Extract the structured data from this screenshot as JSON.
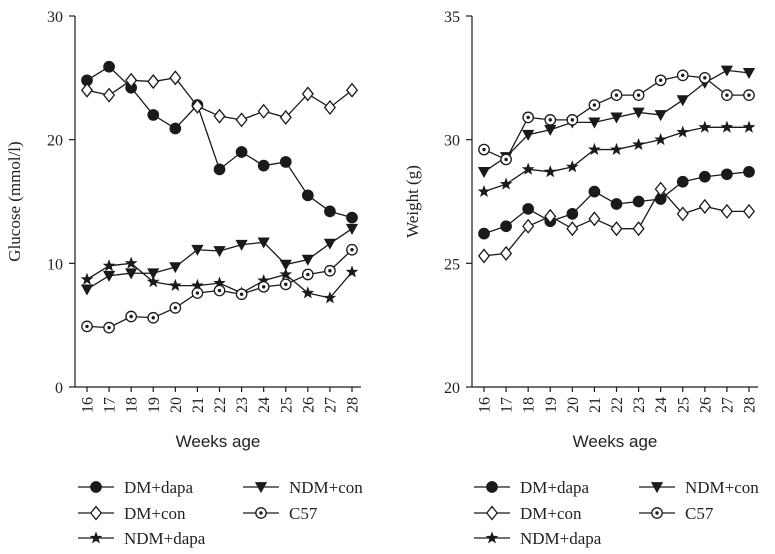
{
  "chart_data": [
    {
      "type": "line",
      "ylabel": "Glucose (mmol/l)",
      "xlabel": "Weeks age",
      "ylim": [
        0,
        30
      ],
      "yticks": [
        0,
        10,
        20,
        30
      ],
      "categories": [
        "16",
        "17",
        "18",
        "19",
        "20",
        "21",
        "22",
        "23",
        "24",
        "25",
        "26",
        "27",
        "28"
      ],
      "series": [
        {
          "name": "DM+dapa",
          "marker": "filled-circle",
          "values": [
            24.8,
            25.9,
            24.2,
            22.0,
            20.9,
            22.8,
            17.6,
            19.0,
            17.9,
            18.2,
            15.5,
            14.2,
            13.7
          ]
        },
        {
          "name": "DM+con",
          "marker": "open-diamond",
          "values": [
            24.0,
            23.6,
            24.8,
            24.7,
            25.0,
            22.7,
            21.9,
            21.6,
            22.3,
            21.8,
            23.7,
            22.6,
            24.0
          ]
        },
        {
          "name": "NDM+dapa",
          "marker": "star",
          "values": [
            8.7,
            9.8,
            10.0,
            8.5,
            8.2,
            8.2,
            8.4,
            7.6,
            8.6,
            9.1,
            7.6,
            7.2,
            9.3
          ]
        },
        {
          "name": "NDM+con",
          "marker": "filled-triangle-down",
          "values": [
            7.9,
            9.0,
            9.2,
            9.2,
            9.7,
            11.1,
            11.0,
            11.5,
            11.7,
            9.9,
            10.3,
            11.6,
            12.8
          ]
        },
        {
          "name": "C57",
          "marker": "circle-dot",
          "values": [
            4.9,
            4.8,
            5.7,
            5.6,
            6.4,
            7.6,
            7.8,
            7.5,
            8.1,
            8.3,
            9.1,
            9.4,
            11.1
          ]
        }
      ]
    },
    {
      "type": "line",
      "ylabel": "Weight (g)",
      "xlabel": "Weeks age",
      "ylim": [
        20,
        35
      ],
      "yticks": [
        20,
        25,
        30,
        35
      ],
      "categories": [
        "16",
        "17",
        "18",
        "19",
        "20",
        "21",
        "22",
        "23",
        "24",
        "25",
        "26",
        "27",
        "28"
      ],
      "series": [
        {
          "name": "DM+dapa",
          "marker": "filled-circle",
          "values": [
            26.2,
            26.5,
            27.2,
            26.7,
            27.0,
            27.9,
            27.4,
            27.5,
            27.6,
            28.3,
            28.5,
            28.6,
            28.7
          ]
        },
        {
          "name": "DM+con",
          "marker": "open-diamond",
          "values": [
            25.3,
            25.4,
            26.5,
            26.9,
            26.4,
            26.8,
            26.4,
            26.4,
            28.0,
            27.0,
            27.3,
            27.1,
            27.1
          ]
        },
        {
          "name": "NDM+dapa",
          "marker": "star",
          "values": [
            27.9,
            28.2,
            28.8,
            28.7,
            28.9,
            29.6,
            29.6,
            29.8,
            30.0,
            30.3,
            30.5,
            30.5,
            30.5
          ]
        },
        {
          "name": "NDM+con",
          "marker": "filled-triangle-down",
          "values": [
            28.7,
            29.3,
            30.2,
            30.4,
            30.7,
            30.7,
            30.9,
            31.1,
            31.0,
            31.6,
            32.3,
            32.8,
            32.7
          ]
        },
        {
          "name": "C57",
          "marker": "circle-dot",
          "values": [
            29.6,
            29.2,
            30.9,
            30.8,
            30.8,
            31.4,
            31.8,
            31.8,
            32.4,
            32.6,
            32.5,
            31.8,
            31.8
          ]
        }
      ]
    }
  ],
  "legend": {
    "items": [
      {
        "label": "DM+dapa",
        "marker": "filled-circle"
      },
      {
        "label": "NDM+con",
        "marker": "filled-triangle-down"
      },
      {
        "label": "DM+con",
        "marker": "open-diamond"
      },
      {
        "label": "C57",
        "marker": "circle-dot"
      },
      {
        "label": "NDM+dapa",
        "marker": "star"
      }
    ]
  },
  "colors": {
    "line": "#1a1a1a",
    "text": "#222222",
    "background": "#ffffff"
  }
}
